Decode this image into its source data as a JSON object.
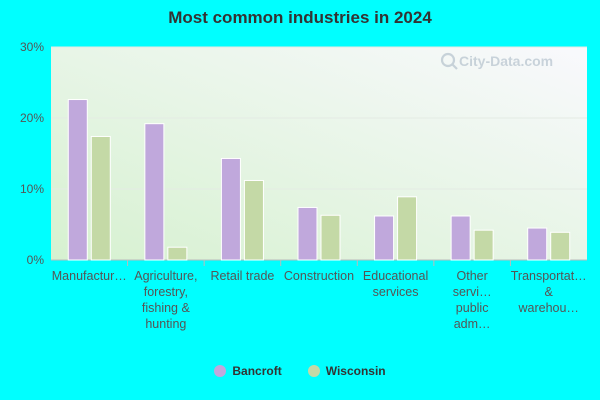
{
  "chart_data": {
    "type": "bar",
    "title": "Most common industries in 2024",
    "categories": [
      "Manufactur…",
      "Agriculture, forestry, fishing & hunting",
      "Retail trade",
      "Construction",
      "Educational services",
      "Other servi… public adm…",
      "Transportat… & warehou…"
    ],
    "series": [
      {
        "name": "Bancroft",
        "color": "#c0a8dc",
        "values": [
          22.6,
          19.2,
          14.3,
          7.4,
          6.2,
          6.2,
          4.5
        ]
      },
      {
        "name": "Wisconsin",
        "color": "#c4d9a6",
        "values": [
          17.4,
          1.8,
          11.2,
          6.3,
          8.9,
          4.2,
          3.9
        ]
      }
    ],
    "yticks": [
      "0%",
      "10%",
      "20%",
      "30%"
    ],
    "ylim": [
      0,
      30
    ],
    "xlabel": "",
    "ylabel": "",
    "grid": true,
    "legend_position": "bottom-center",
    "watermark": "City-Data.com"
  }
}
